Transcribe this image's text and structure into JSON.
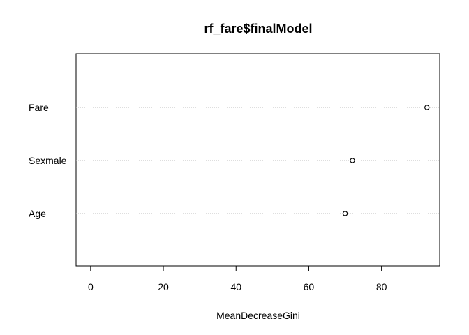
{
  "chart_data": {
    "type": "scatter",
    "title": "rf_fare$finalModel",
    "xlabel": "MeanDecreaseGini",
    "ylabel": "",
    "categories": [
      "Fare",
      "Sexmale",
      "Age"
    ],
    "series": [
      {
        "values": [
          92.5,
          72.0,
          70.0
        ]
      }
    ],
    "xlim": [
      -4,
      96
    ],
    "xticks": [
      0,
      20,
      40,
      60,
      80
    ],
    "xtick_labels": [
      "0",
      "20",
      "40",
      "60",
      "80"
    ],
    "grid": "dotted horizontal guide lines",
    "legend": "none"
  },
  "colors": {
    "background": "#ffffff",
    "axis": "#000000",
    "guide": "#bebebe",
    "marker_stroke": "#000000",
    "marker_fill": "#ffffff"
  }
}
